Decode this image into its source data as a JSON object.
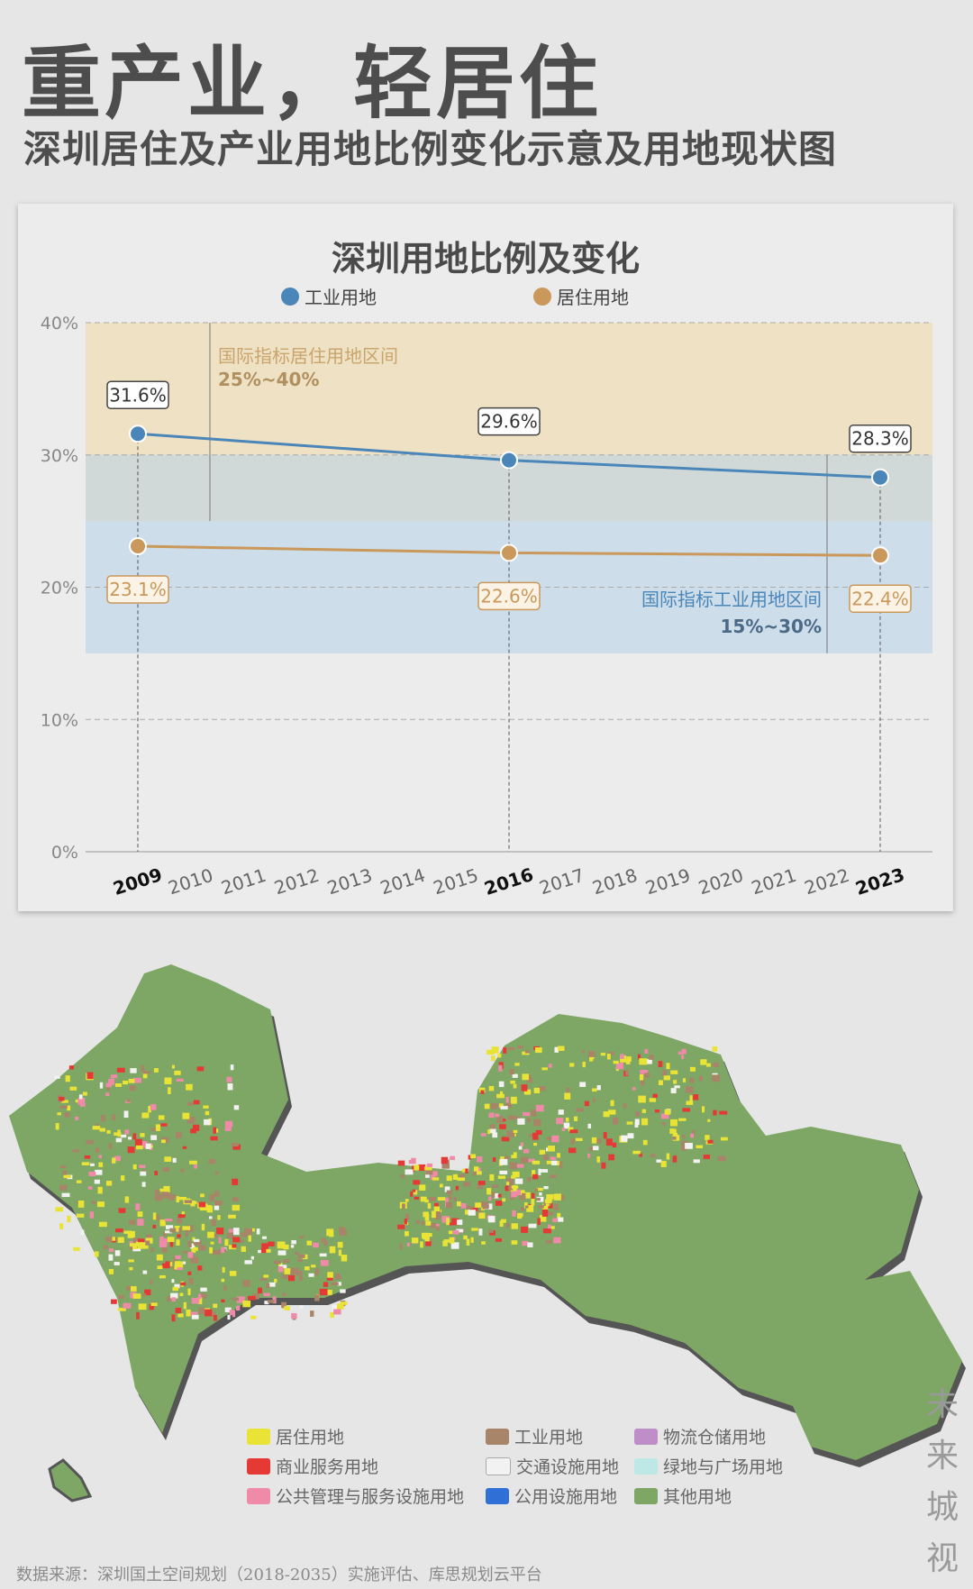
{
  "header": {
    "title": "重产业，轻居住",
    "subtitle": "深圳居住及产业用地比例变化示意及用地现状图"
  },
  "chart_data": {
    "type": "line",
    "title": "深圳用地比例及变化",
    "x": [
      2009,
      2010,
      2011,
      2012,
      2013,
      2014,
      2015,
      2016,
      2017,
      2018,
      2019,
      2020,
      2021,
      2022,
      2023
    ],
    "highlight_years": [
      2009,
      2016,
      2023
    ],
    "ylim": [
      0,
      40
    ],
    "yticks": [
      "0%",
      "10%",
      "20%",
      "30%",
      "40%"
    ],
    "ytick_values": [
      0,
      10,
      20,
      30,
      40
    ],
    "grid": true,
    "legend_position": "top",
    "series": [
      {
        "name": "工业用地",
        "color": "#4a86b8",
        "icon": "gear-icon",
        "points": [
          {
            "x": 2009,
            "y": 31.6,
            "label": "31.6%"
          },
          {
            "x": 2016,
            "y": 29.6,
            "label": "29.6%"
          },
          {
            "x": 2023,
            "y": 28.3,
            "label": "28.3%"
          }
        ]
      },
      {
        "name": "居住用地",
        "color": "#c9985a",
        "icon": "house-icon",
        "points": [
          {
            "x": 2009,
            "y": 23.1,
            "label": "23.1%"
          },
          {
            "x": 2016,
            "y": 22.6,
            "label": "22.6%"
          },
          {
            "x": 2023,
            "y": 22.4,
            "label": "22.4%"
          }
        ]
      }
    ],
    "bands": [
      {
        "label": "国际指标居住用地区间",
        "range_label": "25%~40%",
        "from": 25,
        "to": 40,
        "color": "#efe2c4",
        "text_color": "#c9a46c"
      },
      {
        "label": "国际指标工业用地区间",
        "range_label": "15%~30%",
        "from": 15,
        "to": 30,
        "color": "#c9dbea",
        "text_color": "#4a86b8"
      }
    ]
  },
  "map_legend": [
    {
      "label": "居住用地",
      "color": "#e8e335"
    },
    {
      "label": "工业用地",
      "color": "#a88468"
    },
    {
      "label": "物流仓储用地",
      "color": "#bf8ec9"
    },
    {
      "label": "商业服务用地",
      "color": "#e53935"
    },
    {
      "label": "交通设施用地",
      "color": "#f2f2f2"
    },
    {
      "label": "绿地与广场用地",
      "color": "#bde8e6"
    },
    {
      "label": "公共管理与服务设施用地",
      "color": "#ef8aa8"
    },
    {
      "label": "公用设施用地",
      "color": "#2f6fd6"
    },
    {
      "label": "其他用地",
      "color": "#7ea765"
    }
  ],
  "footer": {
    "source": "数据来源：深圳国土空间规划（2018-2035）实施评估、库思规划云平台"
  },
  "watermark": "未来城视"
}
